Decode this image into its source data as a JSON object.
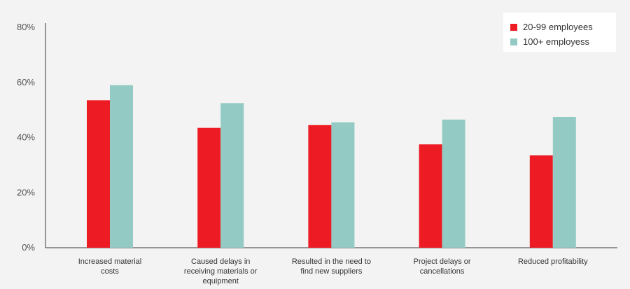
{
  "chart_data": {
    "type": "bar",
    "title": "",
    "xlabel": "",
    "ylabel": "",
    "ylim": [
      0,
      80
    ],
    "yticks": [
      "0%",
      "20%",
      "40%",
      "60%",
      "80%"
    ],
    "y_unit": "%",
    "grid": false,
    "legend_position": "top-right",
    "categories": [
      [
        "Increased material",
        "costs"
      ],
      [
        "Caused delays in",
        "receiving materials or",
        "equipment"
      ],
      [
        "Resulted in the need to",
        "find new suppliers"
      ],
      [
        "Project delays or",
        "cancellations"
      ],
      [
        "Reduced profitability"
      ]
    ],
    "series": [
      {
        "name": "20-99 employees",
        "color": "#ed1c24",
        "values": [
          53.5,
          43.5,
          44.5,
          37.5,
          33.5
        ]
      },
      {
        "name": "100+ employess",
        "color": "#93cbc4",
        "values": [
          59,
          52.5,
          45.5,
          46.5,
          47.5
        ]
      }
    ]
  }
}
